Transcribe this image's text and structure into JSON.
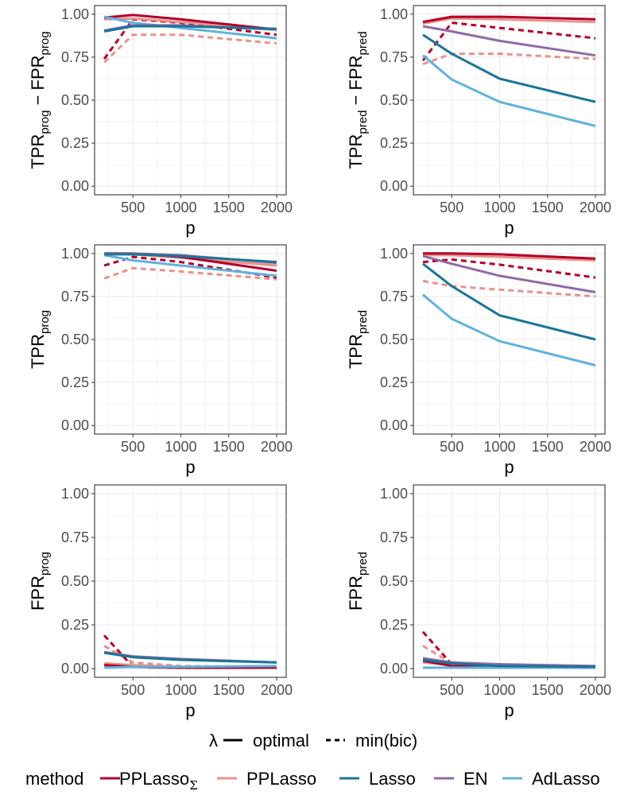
{
  "chart_data": [
    {
      "type": "line",
      "panel": "top-left",
      "ylabel": "TPR_prog − FPR_prog",
      "ylabel_parts": {
        "a": "TPR",
        "asub": "prog",
        "op": " − ",
        "b": "FPR",
        "bsub": "prog"
      },
      "xlabel": "p",
      "x": [
        200,
        500,
        1000,
        2000
      ],
      "xlim": [
        100,
        2100
      ],
      "ylim": [
        -0.05,
        1.05
      ],
      "xticks": [
        "500",
        "1000",
        "1500",
        "2000"
      ],
      "yticks": [
        "0.00",
        "0.25",
        "0.50",
        "0.75",
        "1.00"
      ],
      "series": [
        {
          "name": "PPLasso_Σ",
          "lambda": "optimal",
          "values": [
            0.98,
            0.995,
            0.97,
            0.91
          ]
        },
        {
          "name": "PPLasso_Σ",
          "lambda": "min(bic)",
          "values": [
            0.74,
            0.97,
            0.95,
            0.88
          ]
        },
        {
          "name": "PPLasso",
          "lambda": "optimal",
          "values": [
            0.97,
            0.975,
            0.955,
            0.91
          ]
        },
        {
          "name": "PPLasso",
          "lambda": "min(bic)",
          "values": [
            0.72,
            0.88,
            0.88,
            0.83
          ]
        },
        {
          "name": "Lasso",
          "lambda": "optimal",
          "values": [
            0.9,
            0.93,
            0.93,
            0.915
          ]
        },
        {
          "name": "EN",
          "lambda": "optimal",
          "values": [
            0.905,
            0.935,
            0.935,
            0.91
          ]
        },
        {
          "name": "AdLasso",
          "lambda": "optimal",
          "values": [
            0.985,
            0.95,
            0.92,
            0.86
          ]
        }
      ]
    },
    {
      "type": "line",
      "panel": "top-right",
      "ylabel": "TPR_pred − FPR_pred",
      "ylabel_parts": {
        "a": "TPR",
        "asub": "pred",
        "op": " − ",
        "b": "FPR",
        "bsub": "pred"
      },
      "xlabel": "p",
      "x": [
        200,
        500,
        1000,
        2000
      ],
      "xlim": [
        100,
        2100
      ],
      "ylim": [
        -0.05,
        1.05
      ],
      "xticks": [
        "500",
        "1000",
        "1500",
        "2000"
      ],
      "yticks": [
        "0.00",
        "0.25",
        "0.50",
        "0.75",
        "1.00"
      ],
      "series": [
        {
          "name": "PPLasso_Σ",
          "lambda": "optimal",
          "values": [
            0.955,
            0.985,
            0.985,
            0.97
          ]
        },
        {
          "name": "PPLasso_Σ",
          "lambda": "min(bic)",
          "values": [
            0.73,
            0.95,
            0.92,
            0.86
          ]
        },
        {
          "name": "PPLasso",
          "lambda": "optimal",
          "values": [
            0.945,
            0.975,
            0.97,
            0.955
          ]
        },
        {
          "name": "PPLasso",
          "lambda": "min(bic)",
          "values": [
            0.71,
            0.77,
            0.77,
            0.74
          ]
        },
        {
          "name": "Lasso",
          "lambda": "optimal",
          "values": [
            0.88,
            0.77,
            0.625,
            0.49
          ]
        },
        {
          "name": "EN",
          "lambda": "optimal",
          "values": [
            0.93,
            0.9,
            0.845,
            0.76
          ]
        },
        {
          "name": "AdLasso",
          "lambda": "optimal",
          "values": [
            0.76,
            0.62,
            0.49,
            0.35
          ]
        }
      ]
    },
    {
      "type": "line",
      "panel": "middle-left",
      "ylabel": "TPR_prog",
      "ylabel_parts": {
        "a": "TPR",
        "asub": "prog"
      },
      "xlabel": "p",
      "x": [
        200,
        500,
        1000,
        2000
      ],
      "xlim": [
        100,
        2100
      ],
      "ylim": [
        -0.05,
        1.05
      ],
      "xticks": [
        "500",
        "1000",
        "1500",
        "2000"
      ],
      "yticks": [
        "0.00",
        "0.25",
        "0.50",
        "0.75",
        "1.00"
      ],
      "series": [
        {
          "name": "PPLasso_Σ",
          "lambda": "optimal",
          "values": [
            1.0,
            1.0,
            0.98,
            0.9
          ]
        },
        {
          "name": "PPLasso_Σ",
          "lambda": "min(bic)",
          "values": [
            0.93,
            0.98,
            0.95,
            0.86
          ]
        },
        {
          "name": "PPLasso",
          "lambda": "optimal",
          "values": [
            0.995,
            0.995,
            0.975,
            0.93
          ]
        },
        {
          "name": "PPLasso",
          "lambda": "min(bic)",
          "values": [
            0.855,
            0.915,
            0.895,
            0.85
          ]
        },
        {
          "name": "Lasso",
          "lambda": "optimal",
          "values": [
            0.995,
            0.995,
            0.985,
            0.95
          ]
        },
        {
          "name": "EN",
          "lambda": "optimal",
          "values": [
            1.0,
            1.0,
            0.99,
            0.945
          ]
        },
        {
          "name": "AdLasso",
          "lambda": "optimal",
          "values": [
            0.99,
            0.96,
            0.93,
            0.87
          ]
        }
      ]
    },
    {
      "type": "line",
      "panel": "middle-right",
      "ylabel": "TPR_pred",
      "ylabel_parts": {
        "a": "TPR",
        "asub": "pred"
      },
      "xlabel": "p",
      "x": [
        200,
        500,
        1000,
        2000
      ],
      "xlim": [
        100,
        2100
      ],
      "ylim": [
        -0.05,
        1.05
      ],
      "xticks": [
        "500",
        "1000",
        "1500",
        "2000"
      ],
      "yticks": [
        "0.00",
        "0.25",
        "0.50",
        "0.75",
        "1.00"
      ],
      "series": [
        {
          "name": "PPLasso_Σ",
          "lambda": "optimal",
          "values": [
            1.0,
            1.0,
            0.995,
            0.97
          ]
        },
        {
          "name": "PPLasso_Σ",
          "lambda": "min(bic)",
          "values": [
            0.95,
            0.965,
            0.935,
            0.86
          ]
        },
        {
          "name": "PPLasso",
          "lambda": "optimal",
          "values": [
            0.99,
            0.99,
            0.98,
            0.96
          ]
        },
        {
          "name": "PPLasso",
          "lambda": "min(bic)",
          "values": [
            0.84,
            0.81,
            0.79,
            0.75
          ]
        },
        {
          "name": "Lasso",
          "lambda": "optimal",
          "values": [
            0.94,
            0.81,
            0.64,
            0.5
          ]
        },
        {
          "name": "EN",
          "lambda": "optimal",
          "values": [
            0.985,
            0.94,
            0.87,
            0.775
          ]
        },
        {
          "name": "AdLasso",
          "lambda": "optimal",
          "values": [
            0.76,
            0.62,
            0.49,
            0.35
          ]
        }
      ]
    },
    {
      "type": "line",
      "panel": "bottom-left",
      "ylabel": "FPR_prog",
      "ylabel_parts": {
        "a": "FPR",
        "asub": "prog"
      },
      "xlabel": "p",
      "x": [
        200,
        500,
        1000,
        2000
      ],
      "xlim": [
        100,
        2100
      ],
      "ylim": [
        -0.05,
        1.05
      ],
      "xticks": [
        "500",
        "1000",
        "1500",
        "2000"
      ],
      "yticks": [
        "0.00",
        "0.25",
        "0.50",
        "0.75",
        "1.00"
      ],
      "series": [
        {
          "name": "PPLasso_Σ",
          "lambda": "optimal",
          "values": [
            0.02,
            0.01,
            0.005,
            0.005
          ]
        },
        {
          "name": "PPLasso_Σ",
          "lambda": "min(bic)",
          "values": [
            0.19,
            0.01,
            0.005,
            0.005
          ]
        },
        {
          "name": "PPLasso",
          "lambda": "optimal",
          "values": [
            0.03,
            0.02,
            0.01,
            0.005
          ]
        },
        {
          "name": "PPLasso",
          "lambda": "min(bic)",
          "values": [
            0.13,
            0.035,
            0.015,
            0.01
          ]
        },
        {
          "name": "Lasso",
          "lambda": "optimal",
          "values": [
            0.09,
            0.065,
            0.05,
            0.035
          ]
        },
        {
          "name": "EN",
          "lambda": "optimal",
          "values": [
            0.095,
            0.07,
            0.055,
            0.035
          ]
        },
        {
          "name": "AdLasso",
          "lambda": "optimal",
          "values": [
            0.005,
            0.01,
            0.01,
            0.015
          ]
        }
      ]
    },
    {
      "type": "line",
      "panel": "bottom-right",
      "ylabel": "FPR_pred",
      "ylabel_parts": {
        "a": "FPR",
        "asub": "pred"
      },
      "xlabel": "p",
      "x": [
        200,
        500,
        1000,
        2000
      ],
      "xlim": [
        100,
        2100
      ],
      "ylim": [
        -0.05,
        1.05
      ],
      "xticks": [
        "500",
        "1000",
        "1500",
        "2000"
      ],
      "yticks": [
        "0.00",
        "0.25",
        "0.50",
        "0.75",
        "1.00"
      ],
      "series": [
        {
          "name": "PPLasso_Σ",
          "lambda": "optimal",
          "values": [
            0.045,
            0.015,
            0.01,
            0.005
          ]
        },
        {
          "name": "PPLasso_Σ",
          "lambda": "min(bic)",
          "values": [
            0.21,
            0.025,
            0.01,
            0.005
          ]
        },
        {
          "name": "PPLasso",
          "lambda": "optimal",
          "values": [
            0.035,
            0.02,
            0.01,
            0.005
          ]
        },
        {
          "name": "PPLasso",
          "lambda": "min(bic)",
          "values": [
            0.13,
            0.03,
            0.015,
            0.01
          ]
        },
        {
          "name": "Lasso",
          "lambda": "optimal",
          "values": [
            0.05,
            0.03,
            0.015,
            0.01
          ]
        },
        {
          "name": "EN",
          "lambda": "optimal",
          "values": [
            0.06,
            0.035,
            0.025,
            0.015
          ]
        },
        {
          "name": "AdLasso",
          "lambda": "optimal",
          "values": [
            0.005,
            0.005,
            0.005,
            0.005
          ]
        }
      ]
    }
  ],
  "legend": {
    "lambda_title": "λ",
    "linetypes": [
      {
        "label": "optimal",
        "style": "solid"
      },
      {
        "label": "min(bic)",
        "style": "dashed"
      }
    ],
    "method_title": "method",
    "methods": [
      {
        "name": "PPLasso_Σ",
        "base": "PPLasso",
        "sub": "Σ",
        "color": "#B2002A"
      },
      {
        "name": "PPLasso",
        "base": "PPLasso",
        "sub": "",
        "color": "#E8928A"
      },
      {
        "name": "Lasso",
        "base": "Lasso",
        "sub": "",
        "color": "#1A7599"
      },
      {
        "name": "EN",
        "base": "EN",
        "sub": "",
        "color": "#8F6AA6"
      },
      {
        "name": "AdLasso",
        "base": "AdLasso",
        "sub": "",
        "color": "#5FB2DE"
      }
    ]
  },
  "colors": {
    "PPLasso_Σ": "#B2002A",
    "PPLasso": "#E8928A",
    "Lasso": "#1A7599",
    "EN": "#8F6AA6",
    "AdLasso": "#5FB2DE",
    "grid": "#EBEBEB",
    "panel_border": "#333333"
  }
}
